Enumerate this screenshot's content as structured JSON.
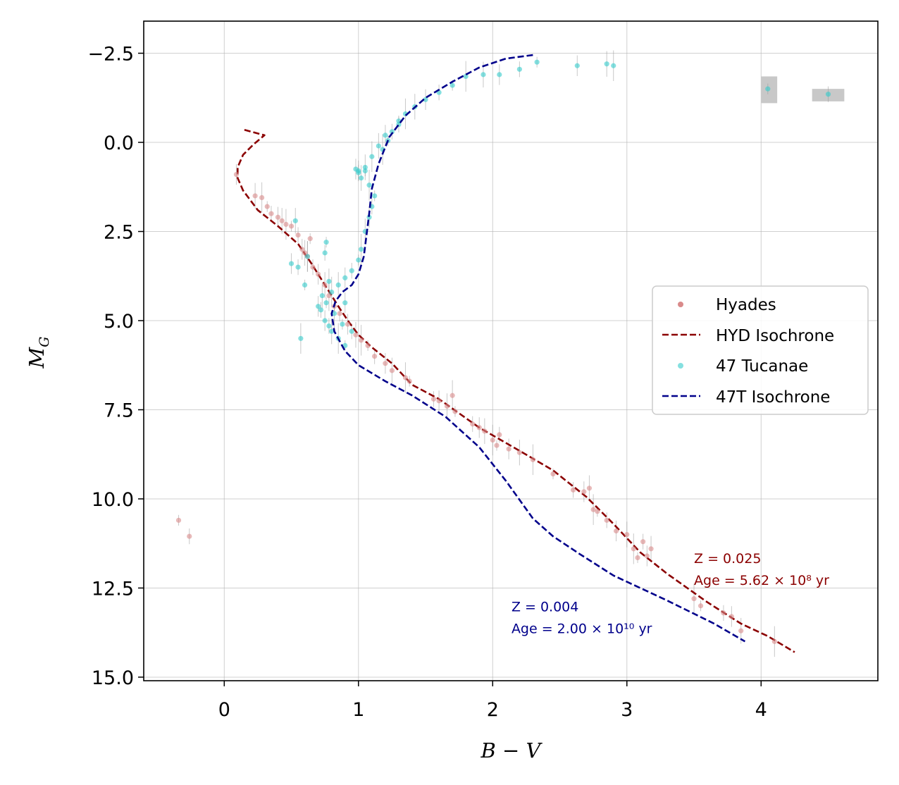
{
  "chart_data": {
    "type": "scatter",
    "xlabel": "B − V",
    "ylabel": "M",
    "ylabel_sub": "G",
    "xlim": [
      -0.6,
      4.87
    ],
    "ylim": [
      15.1,
      -3.4
    ],
    "y_inverted": true,
    "grid": true,
    "x_ticks": [
      0,
      1,
      2,
      3,
      4
    ],
    "x_tick_labels": [
      "0",
      "1",
      "2",
      "3",
      "4"
    ],
    "y_ticks": [
      -2.5,
      0.0,
      2.5,
      5.0,
      7.5,
      10.0,
      12.5,
      15.0
    ],
    "y_tick_labels": [
      "−2.5",
      "0.0",
      "2.5",
      "5.0",
      "7.5",
      "10.0",
      "12.5",
      "15.0"
    ],
    "legend_position": "center-right",
    "legend": [
      {
        "label": "Hyades",
        "kind": "marker",
        "color": "#d98a8a"
      },
      {
        "label": "HYD Isochrone",
        "kind": "dashed-line",
        "color": "#8b0000"
      },
      {
        "label": "47 Tucanae",
        "kind": "marker",
        "color": "#33cccc"
      },
      {
        "label": "47T Isochrone",
        "kind": "dashed-line",
        "color": "#00008b"
      }
    ],
    "series": [
      {
        "name": "Hyades",
        "kind": "scatter",
        "color": "#d98a8a",
        "points": [
          [
            -0.34,
            10.6
          ],
          [
            -0.26,
            11.05
          ],
          [
            0.09,
            0.9
          ],
          [
            0.23,
            1.5
          ],
          [
            0.28,
            1.55
          ],
          [
            0.32,
            1.8
          ],
          [
            0.35,
            2.0
          ],
          [
            0.4,
            2.1
          ],
          [
            0.43,
            2.2
          ],
          [
            0.46,
            2.3
          ],
          [
            0.5,
            2.35
          ],
          [
            0.55,
            2.6
          ],
          [
            0.58,
            3.0
          ],
          [
            0.6,
            3.1
          ],
          [
            0.62,
            3.2
          ],
          [
            0.64,
            2.7
          ],
          [
            0.66,
            3.5
          ],
          [
            0.7,
            3.7
          ],
          [
            0.75,
            4.0
          ],
          [
            0.78,
            4.3
          ],
          [
            0.82,
            4.6
          ],
          [
            0.86,
            4.8
          ],
          [
            0.92,
            5.1
          ],
          [
            0.98,
            5.4
          ],
          [
            1.02,
            5.55
          ],
          [
            1.07,
            5.7
          ],
          [
            1.12,
            6.0
          ],
          [
            1.2,
            6.2
          ],
          [
            1.25,
            6.4
          ],
          [
            1.35,
            6.6
          ],
          [
            1.38,
            6.7
          ],
          [
            1.56,
            7.2
          ],
          [
            1.6,
            7.25
          ],
          [
            1.66,
            7.4
          ],
          [
            1.7,
            7.1
          ],
          [
            1.72,
            7.55
          ],
          [
            1.85,
            7.9
          ],
          [
            1.9,
            8.0
          ],
          [
            1.94,
            8.1
          ],
          [
            2.0,
            8.35
          ],
          [
            2.03,
            8.5
          ],
          [
            2.05,
            8.2
          ],
          [
            2.12,
            8.6
          ],
          [
            2.2,
            8.7
          ],
          [
            2.3,
            8.9
          ],
          [
            2.45,
            9.3
          ],
          [
            2.6,
            9.75
          ],
          [
            2.68,
            9.8
          ],
          [
            2.72,
            9.7
          ],
          [
            2.75,
            10.3
          ],
          [
            2.78,
            10.35
          ],
          [
            2.85,
            10.6
          ],
          [
            2.92,
            10.9
          ],
          [
            3.0,
            11.0
          ],
          [
            3.05,
            11.4
          ],
          [
            3.08,
            11.65
          ],
          [
            3.12,
            11.2
          ],
          [
            3.15,
            11.6
          ],
          [
            3.18,
            11.4
          ],
          [
            3.5,
            12.8
          ],
          [
            3.55,
            13.0
          ],
          [
            3.72,
            13.2
          ],
          [
            3.78,
            13.3
          ],
          [
            3.85,
            13.7
          ],
          [
            4.1,
            14.0
          ]
        ]
      },
      {
        "name": "HYD Isochrone",
        "kind": "dashed-line",
        "color": "#8b0000",
        "points": [
          [
            0.15,
            -0.35
          ],
          [
            0.3,
            -0.2
          ],
          [
            0.22,
            0.05
          ],
          [
            0.14,
            0.35
          ],
          [
            0.1,
            0.7
          ],
          [
            0.1,
            1.0
          ],
          [
            0.14,
            1.35
          ],
          [
            0.25,
            1.9
          ],
          [
            0.4,
            2.35
          ],
          [
            0.55,
            2.85
          ],
          [
            0.65,
            3.4
          ],
          [
            0.75,
            4.0
          ],
          [
            0.85,
            4.6
          ],
          [
            0.93,
            5.05
          ],
          [
            1.0,
            5.4
          ],
          [
            1.1,
            5.75
          ],
          [
            1.25,
            6.2
          ],
          [
            1.4,
            6.8
          ],
          [
            1.6,
            7.2
          ],
          [
            1.9,
            8.0
          ],
          [
            2.2,
            8.65
          ],
          [
            2.45,
            9.2
          ],
          [
            2.7,
            9.95
          ],
          [
            2.9,
            10.7
          ],
          [
            3.1,
            11.5
          ],
          [
            3.3,
            12.1
          ],
          [
            3.6,
            12.9
          ],
          [
            3.85,
            13.5
          ],
          [
            4.05,
            13.85
          ],
          [
            4.25,
            14.3
          ]
        ]
      },
      {
        "name": "47 Tucanae",
        "kind": "scatter",
        "color": "#33cccc",
        "points": [
          [
            2.33,
            -2.25
          ],
          [
            2.2,
            -2.05
          ],
          [
            2.05,
            -1.9
          ],
          [
            1.93,
            -1.9
          ],
          [
            1.8,
            -1.85
          ],
          [
            1.7,
            -1.6
          ],
          [
            1.6,
            -1.4
          ],
          [
            1.5,
            -1.2
          ],
          [
            1.42,
            -1.0
          ],
          [
            1.35,
            -0.8
          ],
          [
            1.3,
            -0.6
          ],
          [
            1.25,
            -0.3
          ],
          [
            1.2,
            -0.2
          ],
          [
            1.15,
            0.1
          ],
          [
            1.1,
            0.4
          ],
          [
            1.05,
            0.8
          ],
          [
            1.0,
            0.85
          ],
          [
            0.98,
            0.75
          ],
          [
            1.02,
            1.0
          ],
          [
            1.08,
            1.2
          ],
          [
            1.12,
            1.5
          ],
          [
            1.1,
            1.8
          ],
          [
            1.08,
            2.1
          ],
          [
            1.05,
            2.5
          ],
          [
            1.02,
            3.0
          ],
          [
            1.0,
            3.3
          ],
          [
            0.95,
            3.6
          ],
          [
            0.9,
            3.8
          ],
          [
            0.85,
            4.0
          ],
          [
            0.8,
            4.2
          ],
          [
            0.76,
            4.5
          ],
          [
            0.72,
            4.7
          ],
          [
            0.75,
            5.0
          ],
          [
            0.8,
            5.3
          ],
          [
            0.85,
            5.5
          ],
          [
            0.9,
            5.7
          ],
          [
            0.78,
            5.15
          ],
          [
            0.7,
            4.6
          ],
          [
            0.73,
            4.3
          ],
          [
            0.82,
            4.8
          ],
          [
            0.88,
            5.1
          ],
          [
            0.95,
            5.3
          ],
          [
            0.9,
            4.5
          ],
          [
            0.78,
            3.9
          ],
          [
            0.62,
            3.2
          ],
          [
            0.6,
            4.0
          ],
          [
            0.55,
            3.5
          ],
          [
            0.5,
            3.4
          ],
          [
            0.53,
            2.2
          ],
          [
            0.57,
            5.5
          ],
          [
            0.76,
            2.8
          ],
          [
            0.75,
            3.1
          ],
          [
            1.0,
            0.8
          ],
          [
            1.05,
            0.7
          ],
          [
            1.18,
            0.2
          ],
          [
            1.22,
            -0.05
          ],
          [
            1.3,
            -0.5
          ],
          [
            2.63,
            -2.15
          ],
          [
            2.85,
            -2.2
          ],
          [
            2.9,
            -2.15
          ],
          [
            4.05,
            -1.5
          ],
          [
            4.5,
            -1.35
          ]
        ]
      },
      {
        "name": "47T Isochrone",
        "kind": "dashed-line",
        "color": "#00008b",
        "points": [
          [
            2.3,
            -2.45
          ],
          [
            2.1,
            -2.35
          ],
          [
            1.9,
            -2.1
          ],
          [
            1.7,
            -1.7
          ],
          [
            1.5,
            -1.25
          ],
          [
            1.35,
            -0.75
          ],
          [
            1.23,
            -0.15
          ],
          [
            1.15,
            0.6
          ],
          [
            1.1,
            1.3
          ],
          [
            1.08,
            2.0
          ],
          [
            1.06,
            2.6
          ],
          [
            1.04,
            3.2
          ],
          [
            1.0,
            3.7
          ],
          [
            0.95,
            4.0
          ],
          [
            0.88,
            4.2
          ],
          [
            0.83,
            4.45
          ],
          [
            0.8,
            4.8
          ],
          [
            0.82,
            5.3
          ],
          [
            0.9,
            5.85
          ],
          [
            1.0,
            6.25
          ],
          [
            1.2,
            6.7
          ],
          [
            1.4,
            7.1
          ],
          [
            1.65,
            7.7
          ],
          [
            1.9,
            8.55
          ],
          [
            2.1,
            9.5
          ],
          [
            2.3,
            10.55
          ],
          [
            2.45,
            11.05
          ],
          [
            2.65,
            11.55
          ],
          [
            2.9,
            12.15
          ],
          [
            3.3,
            12.85
          ],
          [
            3.65,
            13.5
          ],
          [
            3.88,
            14.0
          ]
        ]
      }
    ],
    "error_boxes": [
      {
        "x": [
          4.0,
          4.12
        ],
        "y": [
          -1.85,
          -1.1
        ],
        "color": "#c8c8c8"
      },
      {
        "x": [
          4.38,
          4.62
        ],
        "y": [
          -1.5,
          -1.15
        ],
        "color": "#c8c8c8"
      }
    ],
    "annotations": [
      {
        "lines": [
          "Z = 0.025",
          "Age = 5.62 × 10⁸ yr"
        ],
        "color": "#8b0000",
        "x": 3.5,
        "y": 11.8
      },
      {
        "lines": [
          "Z = 0.004",
          "Age = 2.00 × 10¹⁰ yr"
        ],
        "color": "#00008b",
        "x": 2.14,
        "y": 13.15
      }
    ]
  }
}
